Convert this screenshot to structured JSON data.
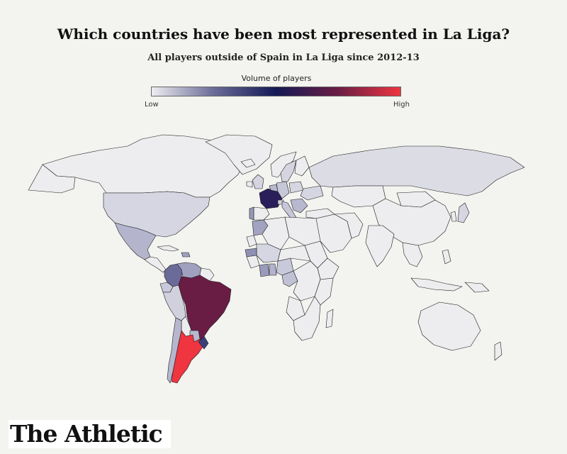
{
  "chart": {
    "title": "Which countries have been most represented in La Liga?",
    "subtitle": "All players outside of Spain in La Liga since 2012-13"
  },
  "legend": {
    "title": "Volume of players",
    "low_label": "Low",
    "high_label": "High",
    "gradient_colors": [
      "#ededf0",
      "#6a6b98",
      "#141a55",
      "#6a1d44",
      "#ee3540"
    ]
  },
  "brand": {
    "name": "The Athletic"
  },
  "map_colors": {
    "land_default": "#ededef",
    "border": "#1c1c1c",
    "ocean": "#f3f3ef"
  },
  "countries": [
    {
      "name": "Argentina",
      "color": "#ee3540"
    },
    {
      "name": "Brazil",
      "color": "#6a1d44"
    },
    {
      "name": "France",
      "color": "#2a1f5a"
    },
    {
      "name": "Uruguay",
      "color": "#3a3f7a"
    },
    {
      "name": "Colombia",
      "color": "#6a6b98"
    },
    {
      "name": "Venezuela",
      "color": "#a0a1bf"
    },
    {
      "name": "Chile",
      "color": "#b6b7cf"
    },
    {
      "name": "Paraguay",
      "color": "#b8b9d0"
    },
    {
      "name": "Peru",
      "color": "#d0d1dd"
    },
    {
      "name": "Ecuador",
      "color": "#c8c9da"
    },
    {
      "name": "Mexico",
      "color": "#b4b5cd"
    },
    {
      "name": "Portugal",
      "color": "#9698b8"
    },
    {
      "name": "Morocco",
      "color": "#a2a3c1"
    },
    {
      "name": "Senegal",
      "color": "#8e90b3"
    },
    {
      "name": "Ivory Coast",
      "color": "#9a9bbb"
    },
    {
      "name": "Ghana",
      "color": "#b2b3cb"
    },
    {
      "name": "Nigeria",
      "color": "#c8c9da"
    },
    {
      "name": "Cameroon",
      "color": "#c0c1d5"
    },
    {
      "name": "Mali",
      "color": "#d6d6e2"
    },
    {
      "name": "Italy",
      "color": "#c6c7d8"
    },
    {
      "name": "Germany",
      "color": "#c6c7d8"
    },
    {
      "name": "Belgium",
      "color": "#b8b9d0"
    },
    {
      "name": "Netherlands",
      "color": "#b8b9d0"
    },
    {
      "name": "Serbia",
      "color": "#b8b9d0"
    },
    {
      "name": "Croatia",
      "color": "#c4c5d7"
    },
    {
      "name": "Switzerland",
      "color": "#cfd0dd"
    },
    {
      "name": "UK",
      "color": "#d4d5e0"
    },
    {
      "name": "Sweden",
      "color": "#d4d5e0"
    },
    {
      "name": "Poland",
      "color": "#d6d6e2"
    },
    {
      "name": "Ukraine",
      "color": "#d6d6e2"
    },
    {
      "name": "Russia",
      "color": "#dcdce5"
    },
    {
      "name": "USA",
      "color": "#d6d6e2"
    },
    {
      "name": "Japan",
      "color": "#d6d6e2"
    },
    {
      "name": "Dominican Republic",
      "color": "#a0a1bf"
    }
  ]
}
